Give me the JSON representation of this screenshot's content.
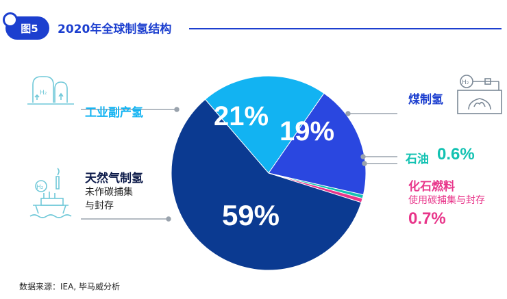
{
  "figure": {
    "badge": "图5",
    "title": "2020年全球制氢结构"
  },
  "source": "数据来源：IEA, 毕马威分析",
  "colors": {
    "accent": "#1c3fcf",
    "natural_gas": "#0b3a91",
    "industrial": "#12b3f2",
    "coal": "#2a47e0",
    "oil": "#13c2b2",
    "fossil_ccs": "#e8358a",
    "icon": "#6fc8d8",
    "leader": "#9aa3ad"
  },
  "labels": {
    "industrial": {
      "name": "工业副产氢"
    },
    "coal": {
      "name": "煤制氢"
    },
    "oil": {
      "name": "石油",
      "value": "0.6%"
    },
    "fossil_ccs": {
      "name": "化石燃料",
      "sub": "使用碳捕集与封存",
      "value": "0.7%"
    },
    "natural_gas": {
      "name": "天然气制氢",
      "sub_line1": "未作碳捕集",
      "sub_line2": "与封存"
    }
  },
  "slice_labels": {
    "industrial": "21%",
    "coal": "19%",
    "natural_gas": "59%"
  },
  "icons": [
    "industrial-tanks-icon",
    "coal-furnace-icon",
    "gas-platform-icon"
  ],
  "chart_data": {
    "type": "pie",
    "title": "2020年全球制氢结构",
    "slices": [
      {
        "key": "industrial",
        "label": "工业副产氢",
        "value": 21
      },
      {
        "key": "coal",
        "label": "煤制氢",
        "value": 19
      },
      {
        "key": "oil",
        "label": "石油",
        "value": 0.6
      },
      {
        "key": "fossil_ccs",
        "label": "化石燃料 使用碳捕集与封存",
        "value": 0.7
      },
      {
        "key": "natural_gas",
        "label": "天然气制氢 未作碳捕集与封存",
        "value": 59
      }
    ],
    "value_labels": [
      "21%",
      "19%",
      "0.6%",
      "0.7%",
      "59%"
    ],
    "legend": "none"
  }
}
